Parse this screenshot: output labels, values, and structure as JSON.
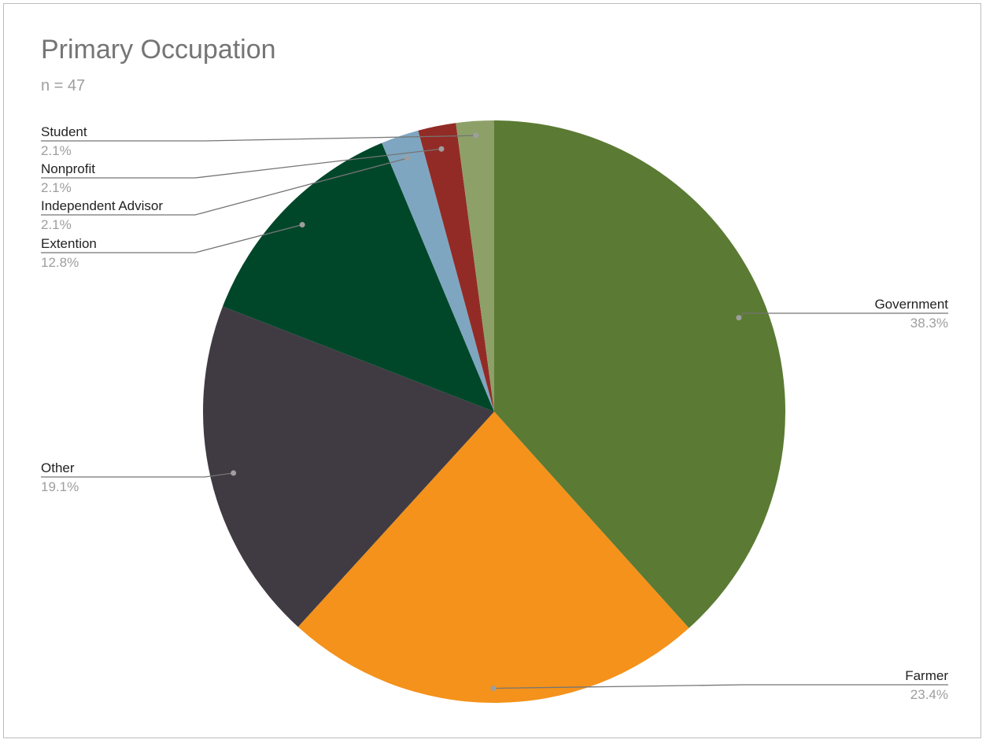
{
  "chart_data": {
    "type": "pie",
    "title": "Primary Occupation",
    "subtitle": "n = 47",
    "slices": [
      {
        "label": "Government",
        "value": 38.3,
        "display": "38.3%",
        "color": "#5b7a33"
      },
      {
        "label": "Farmer",
        "value": 23.4,
        "display": "23.4%",
        "color": "#f4921b"
      },
      {
        "label": "Other",
        "value": 19.1,
        "display": "19.1%",
        "color": "#403b42"
      },
      {
        "label": "Extention",
        "value": 12.8,
        "display": "12.8%",
        "color": "#00472a"
      },
      {
        "label": "Independent Advisor",
        "value": 2.1,
        "display": "2.1%",
        "color": "#7fa6c0"
      },
      {
        "label": "Nonprofit",
        "value": 2.1,
        "display": "2.1%",
        "color": "#922b26"
      },
      {
        "label": "Student",
        "value": 2.1,
        "display": "2.1%",
        "color": "#8da068"
      }
    ],
    "start_angle": "12 o'clock",
    "direction": "clockwise",
    "legend": "callout-labels"
  }
}
